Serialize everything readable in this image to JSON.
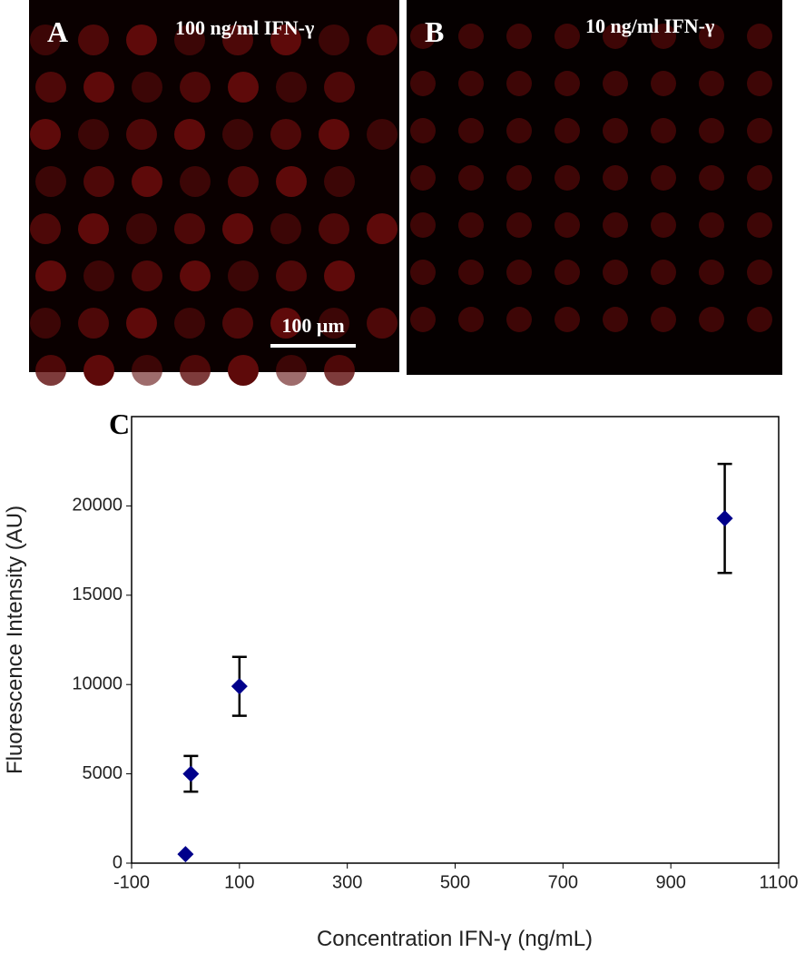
{
  "panels": [
    {
      "label": "A",
      "title": "100 ng/ml IFN-γ",
      "scale_bar": "100 μm"
    },
    {
      "label": "B",
      "title": "10 ng/ml IFN-γ"
    }
  ],
  "chart_data": {
    "type": "scatter",
    "label": "C",
    "x_label": "Concentration IFN-γ (ng/mL)",
    "y_label": "Fluorescence Intensity (AU)",
    "x": [
      0,
      10,
      100,
      1000
    ],
    "values": [
      500,
      5000,
      9900,
      19300
    ],
    "errors": [
      null,
      1000,
      1650,
      3050
    ],
    "color": "#00008b",
    "xlim": [
      -100,
      1100
    ],
    "xticks": [
      -100,
      100,
      300,
      500,
      700,
      900,
      1100
    ],
    "ylim": [
      0,
      25000
    ],
    "yticks": [
      0,
      5000,
      10000,
      15000,
      20000
    ]
  }
}
